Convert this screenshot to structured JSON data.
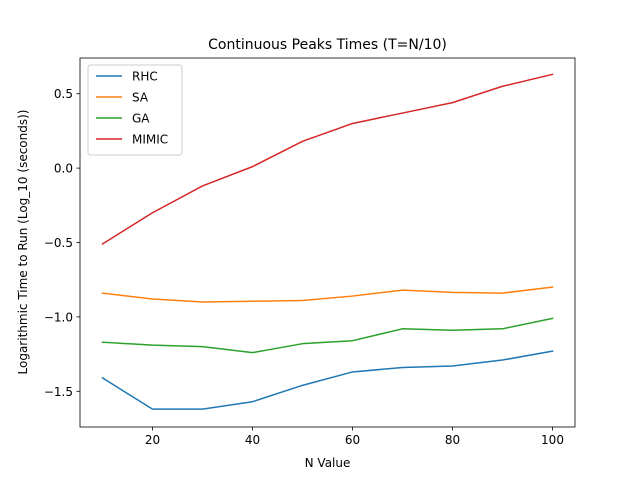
{
  "chart_data": {
    "type": "line",
    "title": "Continuous Peaks Times (T=N/10)",
    "xlabel": "N Value",
    "ylabel": "Logarithmic Time to Run (Log_10 (seconds))",
    "x": [
      10,
      20,
      30,
      40,
      50,
      60,
      70,
      80,
      90,
      100
    ],
    "xlim": [
      5.5,
      104.5
    ],
    "ylim": [
      -1.74,
      0.74
    ],
    "xticks": [
      20,
      40,
      60,
      80,
      100
    ],
    "yticks": [
      -1.5,
      -1.0,
      -0.5,
      0.0,
      0.5
    ],
    "xtick_labels": [
      "20",
      "40",
      "60",
      "80",
      "100"
    ],
    "ytick_labels": [
      "−1.5",
      "−1.0",
      "−0.5",
      "0.0",
      "0.5"
    ],
    "grid": false,
    "legend_position": "top-left",
    "series": [
      {
        "name": "RHC",
        "color": "#1f77b4",
        "values": [
          -1.41,
          -1.62,
          -1.62,
          -1.57,
          -1.46,
          -1.37,
          -1.34,
          -1.33,
          -1.29,
          -1.23
        ]
      },
      {
        "name": "SA",
        "color": "#ff7f0e",
        "values": [
          -0.84,
          -0.88,
          -0.9,
          -0.895,
          -0.89,
          -0.86,
          -0.82,
          -0.835,
          -0.84,
          -0.8
        ]
      },
      {
        "name": "GA",
        "color": "#2ca02c",
        "values": [
          -1.17,
          -1.19,
          -1.2,
          -1.24,
          -1.18,
          -1.16,
          -1.08,
          -1.09,
          -1.08,
          -1.01
        ]
      },
      {
        "name": "MIMIC",
        "color": "#d62728",
        "values": [
          -0.51,
          -0.3,
          -0.12,
          0.01,
          0.18,
          0.3,
          0.37,
          0.44,
          0.55,
          0.63
        ]
      }
    ]
  }
}
